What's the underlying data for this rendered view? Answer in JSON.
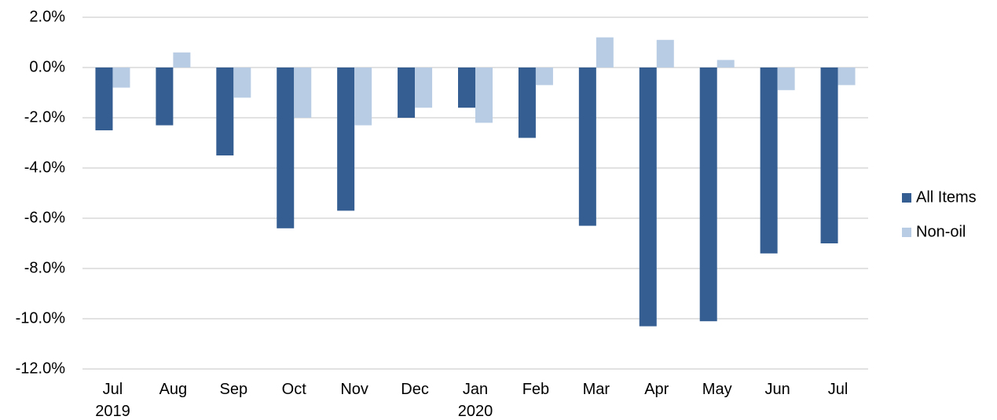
{
  "chart_data": {
    "type": "bar",
    "categories": [
      "Jul\n2019",
      "Aug",
      "Sep",
      "Oct",
      "Nov",
      "Dec",
      "Jan\n2020",
      "Feb",
      "Mar",
      "Apr",
      "May",
      "Jun",
      "Jul"
    ],
    "series": [
      {
        "name": "All Items",
        "color": "#355f93",
        "values": [
          -2.5,
          -2.3,
          -3.5,
          -6.4,
          -5.7,
          -2.0,
          -1.6,
          -2.8,
          -6.3,
          -10.3,
          -10.1,
          -7.4,
          -7.0
        ]
      },
      {
        "name": "Non-oil",
        "color": "#b8cce4",
        "values": [
          -0.8,
          0.6,
          -1.2,
          -2.0,
          -2.3,
          -1.6,
          -2.2,
          -0.7,
          1.2,
          1.1,
          0.3,
          -0.9,
          -0.7
        ]
      }
    ],
    "ylim": [
      -12,
      2
    ],
    "yticks": [
      {
        "value": -12,
        "label": "-12.0%"
      },
      {
        "value": -10,
        "label": "-10.0%"
      },
      {
        "value": -8,
        "label": "-8.0%"
      },
      {
        "value": -6,
        "label": "-6.0%"
      },
      {
        "value": -4,
        "label": "-4.0%"
      },
      {
        "value": -2,
        "label": "-2.0%"
      },
      {
        "value": 0,
        "label": "0.0%"
      },
      {
        "value": 2,
        "label": "2.0%"
      }
    ],
    "grid": true,
    "legend": "right"
  }
}
